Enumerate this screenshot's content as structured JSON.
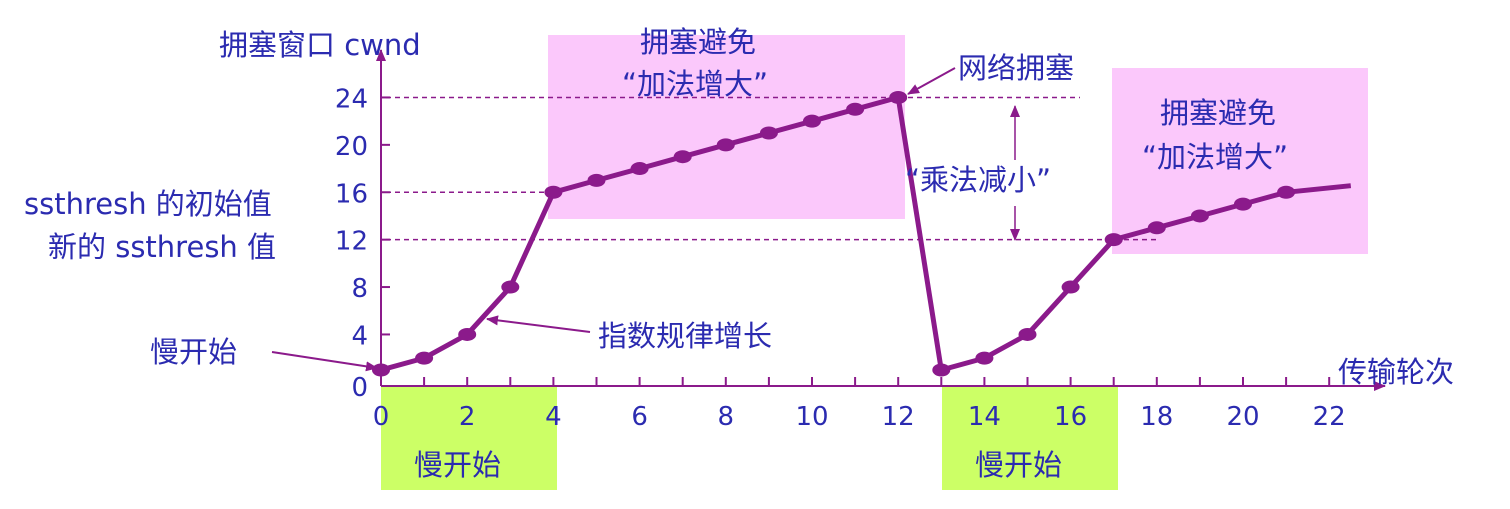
{
  "chart_data": {
    "type": "line",
    "x": [
      0,
      1,
      2,
      3,
      4,
      5,
      6,
      7,
      8,
      9,
      10,
      11,
      12,
      13,
      14,
      15,
      16,
      17,
      18,
      19,
      20,
      21
    ],
    "values": [
      1,
      2,
      4,
      8,
      16,
      17,
      18,
      19,
      20,
      21,
      22,
      23,
      24,
      1,
      2,
      4,
      8,
      12,
      13,
      14,
      15,
      16
    ],
    "xlabel": "传输轮次",
    "ylabel": "拥塞窗口 cwnd",
    "xlim": [
      0,
      23
    ],
    "ylim": [
      0,
      27
    ],
    "x_ticks": [
      "0",
      "2",
      "4",
      "6",
      "8",
      "10",
      "12",
      "14",
      "16",
      "18",
      "20",
      "22"
    ],
    "x_tick_values": [
      0,
      2,
      4,
      6,
      8,
      10,
      12,
      14,
      16,
      18,
      20,
      22
    ],
    "y_ticks": [
      "0",
      "4",
      "8",
      "12",
      "16",
      "20",
      "24"
    ],
    "y_tick_values": [
      0,
      4,
      8,
      12,
      16,
      20,
      24
    ],
    "reference_lines": [
      24,
      16,
      12
    ],
    "colors": {
      "line": "#8b1a8b",
      "text": "#2b2bb0",
      "axis": "#8b1a8b",
      "avoid_box": "#fbc8fb",
      "slow_box": "#ccff66"
    },
    "annotations": {
      "ssthresh_initial": "ssthresh 的初始值",
      "ssthresh_new": "新的 ssthresh 值",
      "slow_start_arrow": "慢开始",
      "exp_growth": "指数规律增长",
      "congestion": "网络拥塞",
      "mult_decrease": "“乘法减小”",
      "avoid1_line1": "拥塞避免",
      "avoid1_line2": "“加法增大”",
      "avoid2_line1": "拥塞避免",
      "avoid2_line2": "“加法增大”",
      "slow1": "慢开始",
      "slow2": "慢开始"
    }
  }
}
